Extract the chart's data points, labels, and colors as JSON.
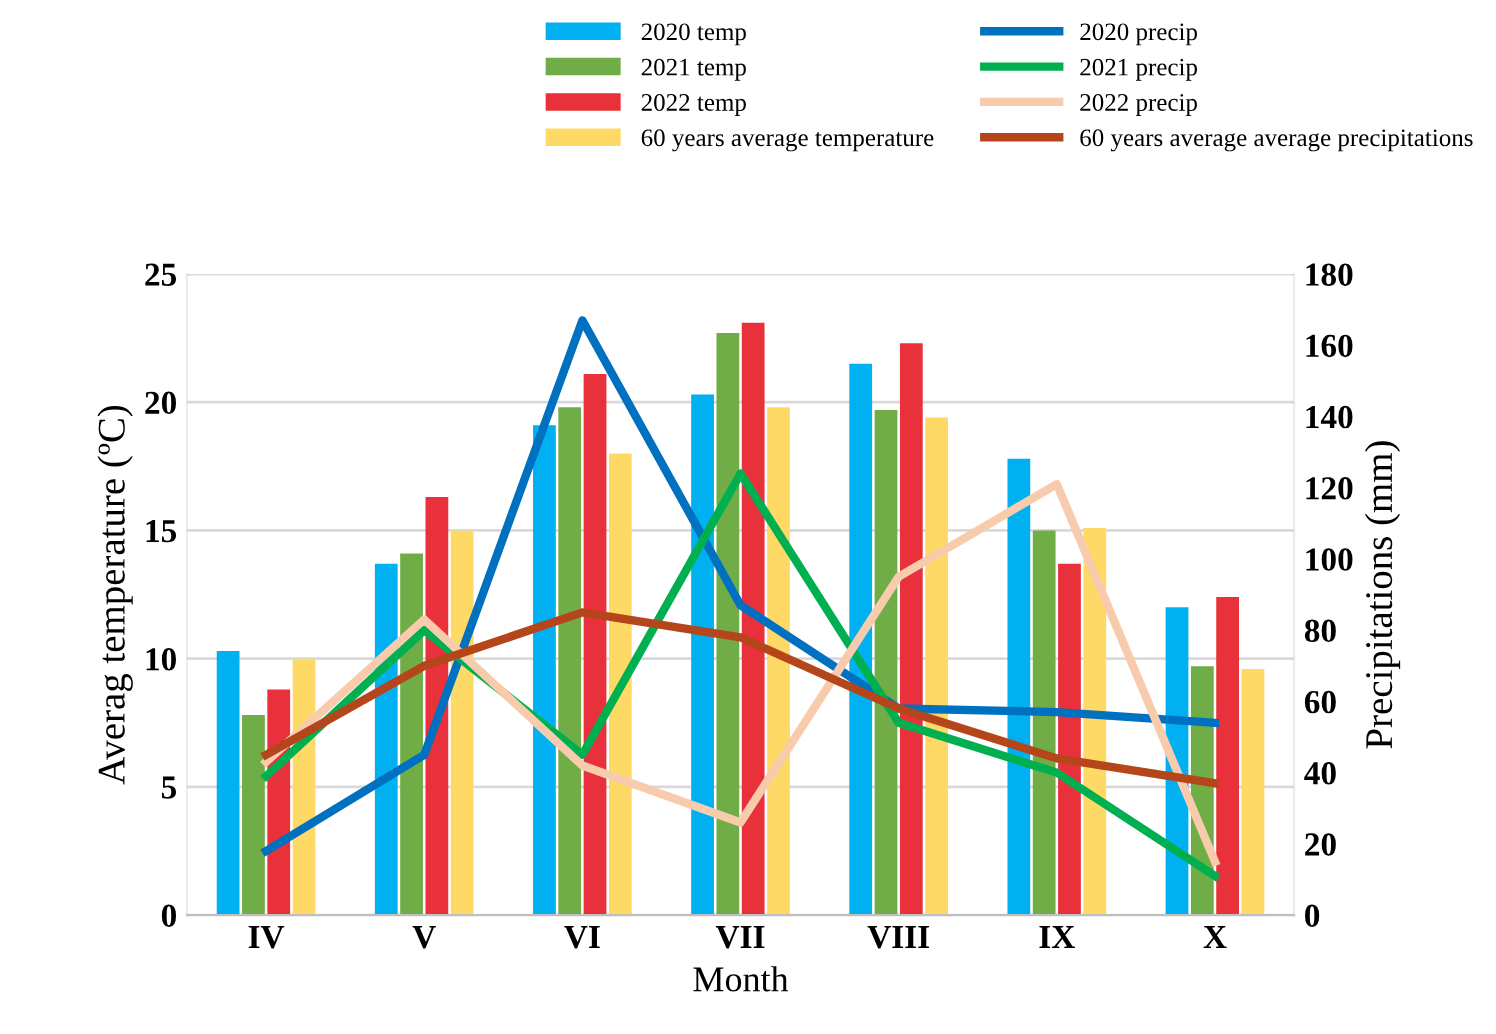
{
  "chart_data": {
    "type": "bar",
    "xlabel": "Month",
    "ylabel": "Averag temperature (ºC)",
    "y2label": "Precipitations (mm)",
    "categories": [
      "IV",
      "V",
      "VI",
      "VII",
      "VIII",
      "IX",
      "X"
    ],
    "series": [
      {
        "name": "2020 temp",
        "color": "#00b0f0",
        "values": [
          10.3,
          13.7,
          19.1,
          20.3,
          21.5,
          17.8,
          12.0
        ]
      },
      {
        "name": "2021 temp",
        "color": "#70ad47",
        "values": [
          7.8,
          14.1,
          19.8,
          22.7,
          19.7,
          15.0,
          9.7
        ]
      },
      {
        "name": "2022 temp",
        "color": "#e8313a",
        "values": [
          8.8,
          16.3,
          21.1,
          23.1,
          22.3,
          13.7,
          12.4
        ]
      },
      {
        "name": "60 years average temperature",
        "color": "#ffd966",
        "values": [
          10.0,
          15.0,
          18.0,
          19.8,
          19.4,
          15.1,
          9.6
        ]
      },
      {
        "name": "2020 precip",
        "type": "line",
        "axis": "y2",
        "color": "#0070c0",
        "values": [
          18,
          45,
          167,
          87,
          58,
          57,
          54
        ]
      },
      {
        "name": "2021 precip",
        "type": "line",
        "axis": "y2",
        "color": "#00b050",
        "values": [
          39,
          80,
          45,
          124,
          54,
          40,
          11
        ]
      },
      {
        "name": "2022 precip",
        "type": "line",
        "axis": "y2",
        "color": "#f8cbad",
        "values": [
          43,
          83,
          42,
          26,
          95,
          121,
          15
        ]
      },
      {
        "name": "60 years average average precipitations",
        "type": "line",
        "axis": "y2",
        "color": "#b5461b",
        "values": [
          45,
          70,
          85,
          78,
          58,
          44,
          37
        ]
      }
    ],
    "ylim": [
      0,
      25
    ],
    "yticks": [
      0,
      5,
      10,
      15,
      20,
      25
    ],
    "y2lim": [
      0,
      180
    ],
    "y2ticks": [
      0,
      20,
      40,
      60,
      80,
      100,
      120,
      140,
      160,
      180
    ],
    "grid": "y",
    "legend": "top right",
    "marker": "none",
    "line_style": "solid"
  }
}
